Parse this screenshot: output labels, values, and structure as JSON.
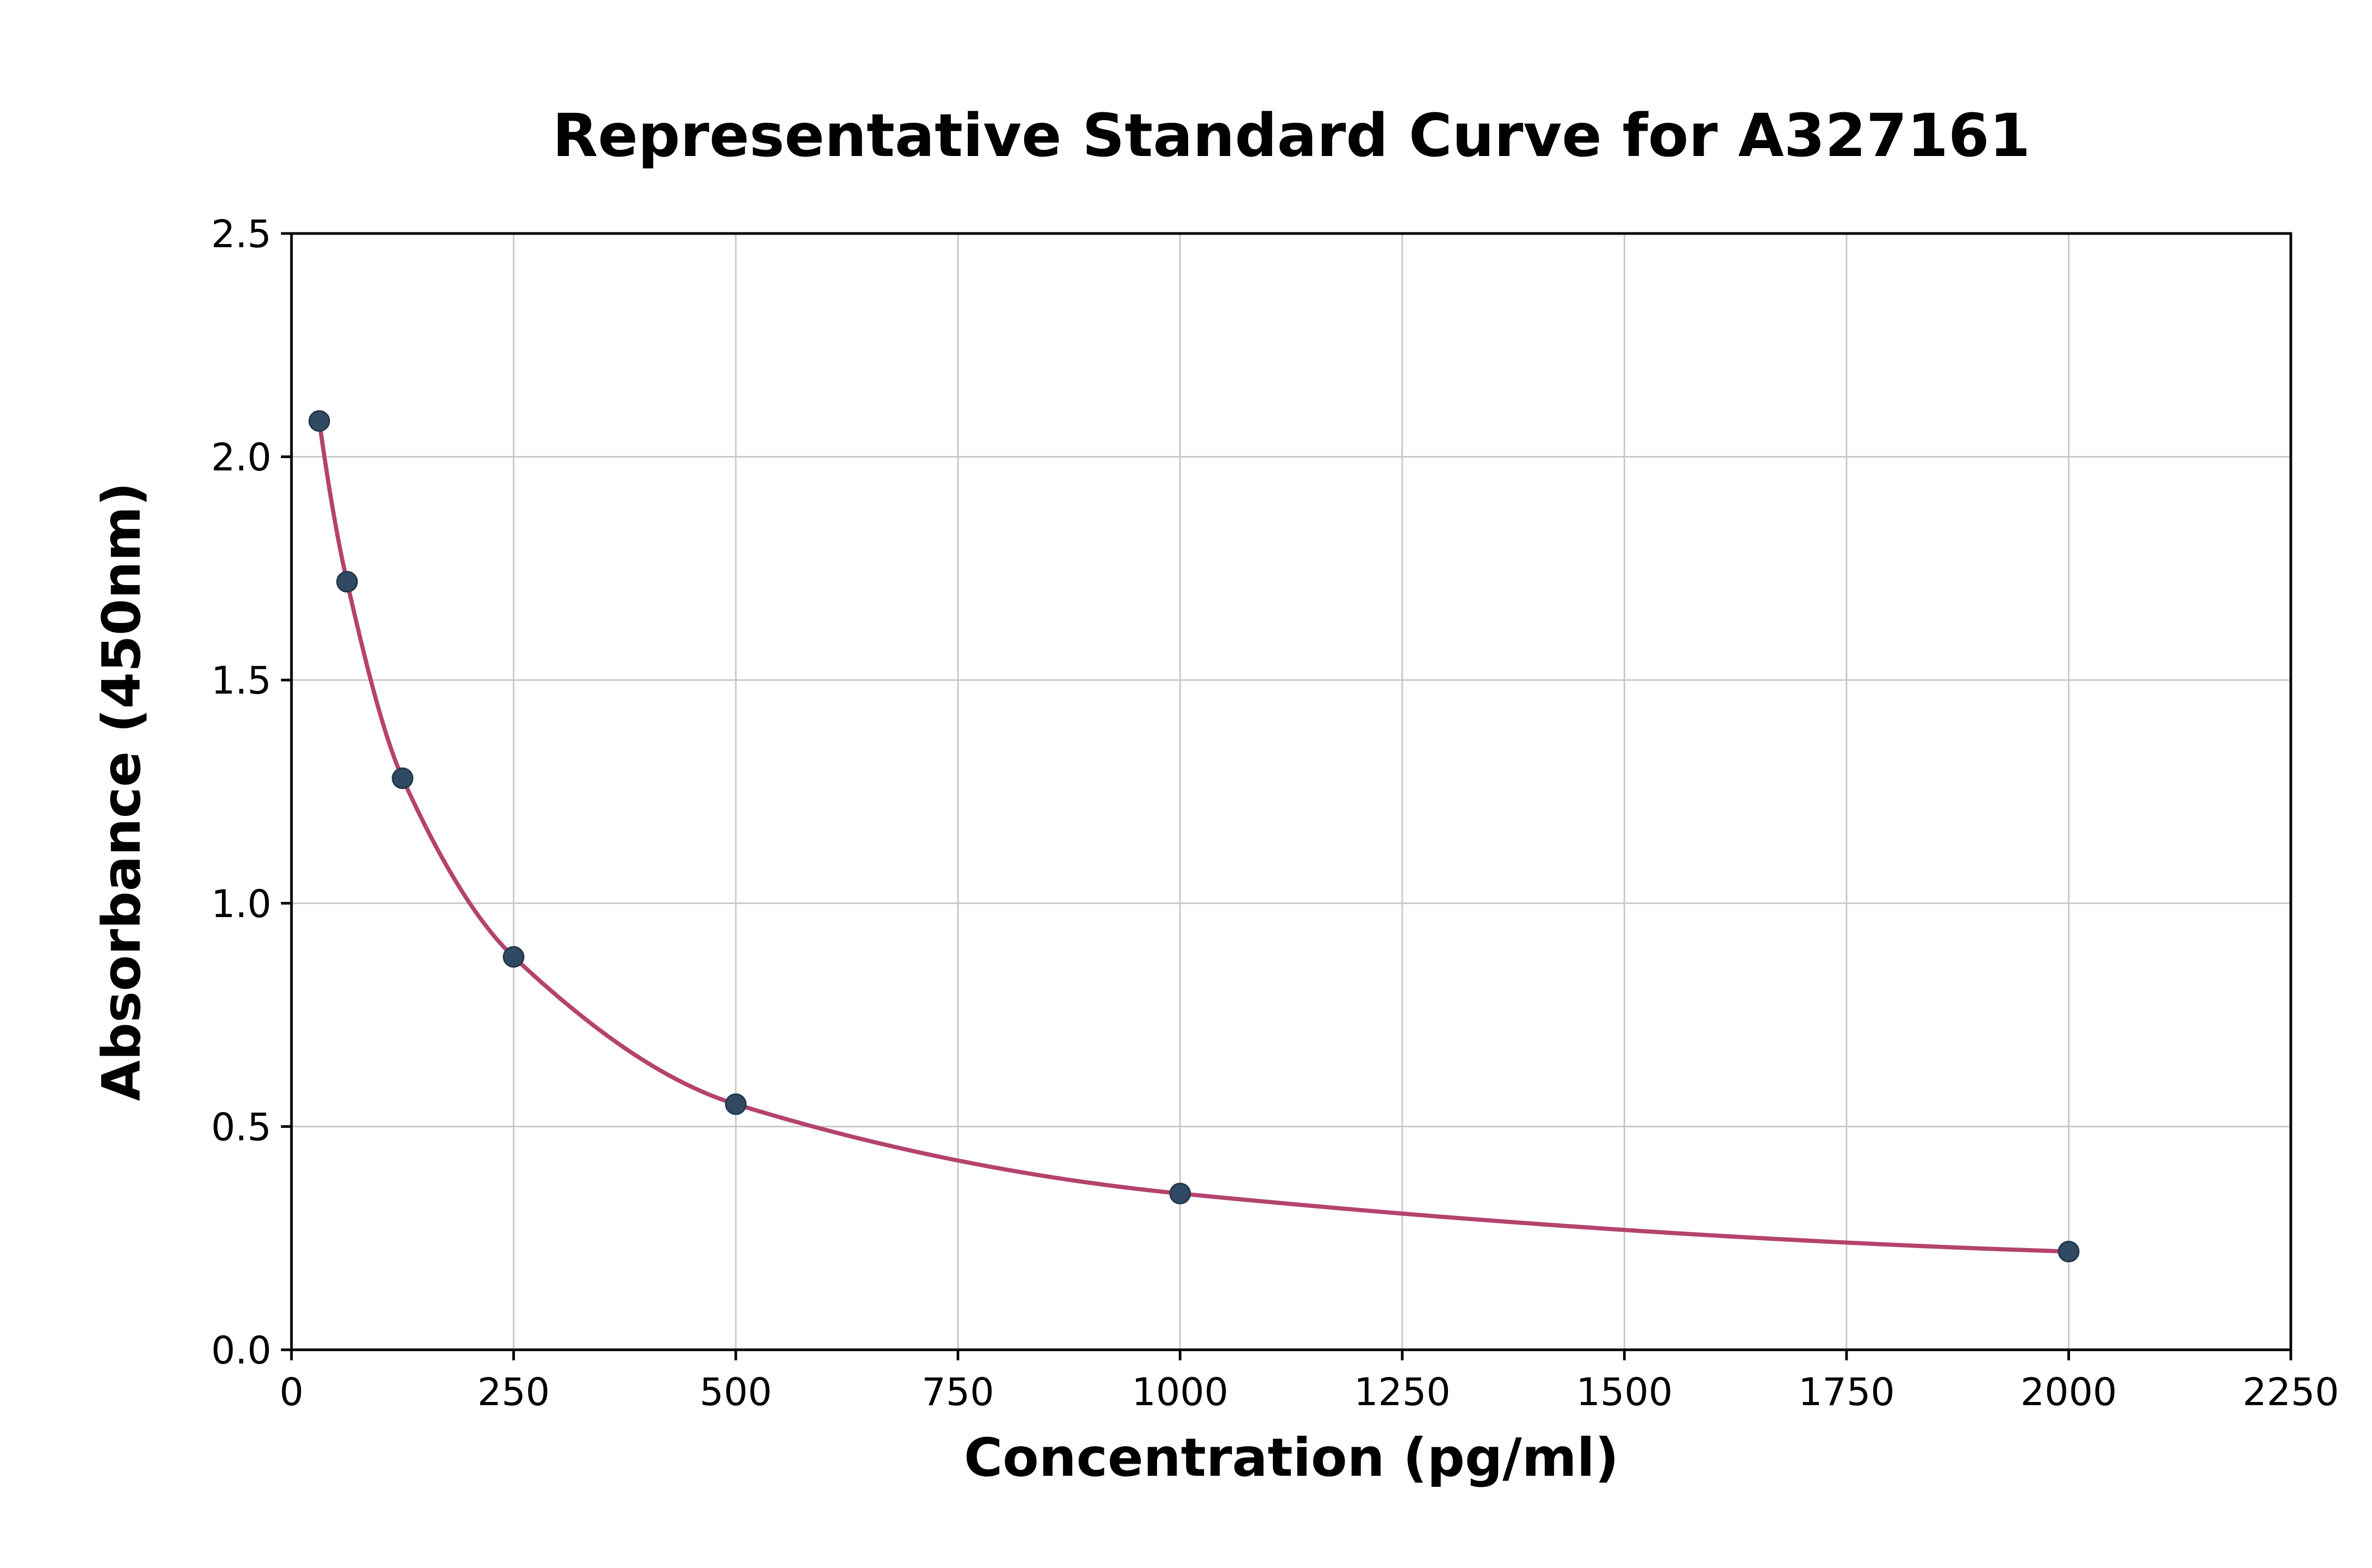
{
  "chart_data": {
    "type": "scatter",
    "title": "Representative Standard Curve for A327161",
    "xlabel": "Concentration (pg/ml)",
    "ylabel": "Absorbance (450nm)",
    "xlim": [
      0,
      2250
    ],
    "ylim": [
      0,
      2.5
    ],
    "grid": true,
    "legend": "none",
    "fit": "smooth standard-curve fit through points",
    "x_ticks": [
      {
        "v": 0,
        "label": "0"
      },
      {
        "v": 250,
        "label": "250"
      },
      {
        "v": 500,
        "label": "500"
      },
      {
        "v": 750,
        "label": "750"
      },
      {
        "v": 1000,
        "label": "1000"
      },
      {
        "v": 1250,
        "label": "1250"
      },
      {
        "v": 1500,
        "label": "1500"
      },
      {
        "v": 1750,
        "label": "1750"
      },
      {
        "v": 2000,
        "label": "2000"
      },
      {
        "v": 2250,
        "label": "2250"
      }
    ],
    "y_ticks": [
      {
        "v": 0,
        "label": "0.0"
      },
      {
        "v": 0.5,
        "label": "0.5"
      },
      {
        "v": 1.0,
        "label": "1.0"
      },
      {
        "v": 1.5,
        "label": "1.5"
      },
      {
        "v": 2.0,
        "label": "2.0"
      },
      {
        "v": 2.5,
        "label": "2.5"
      }
    ],
    "points": [
      {
        "x": 31.25,
        "y": 2.08
      },
      {
        "x": 62.5,
        "y": 1.72
      },
      {
        "x": 125,
        "y": 1.28
      },
      {
        "x": 250,
        "y": 0.88
      },
      {
        "x": 500,
        "y": 0.55
      },
      {
        "x": 1000,
        "y": 0.35
      },
      {
        "x": 2000,
        "y": 0.22
      }
    ],
    "colors": {
      "curve": "#b4436e",
      "point_fill": "#304a63",
      "point_edge": "#233749",
      "grid": "#c8c8c8",
      "axis": "#000000",
      "background": "#ffffff"
    }
  }
}
